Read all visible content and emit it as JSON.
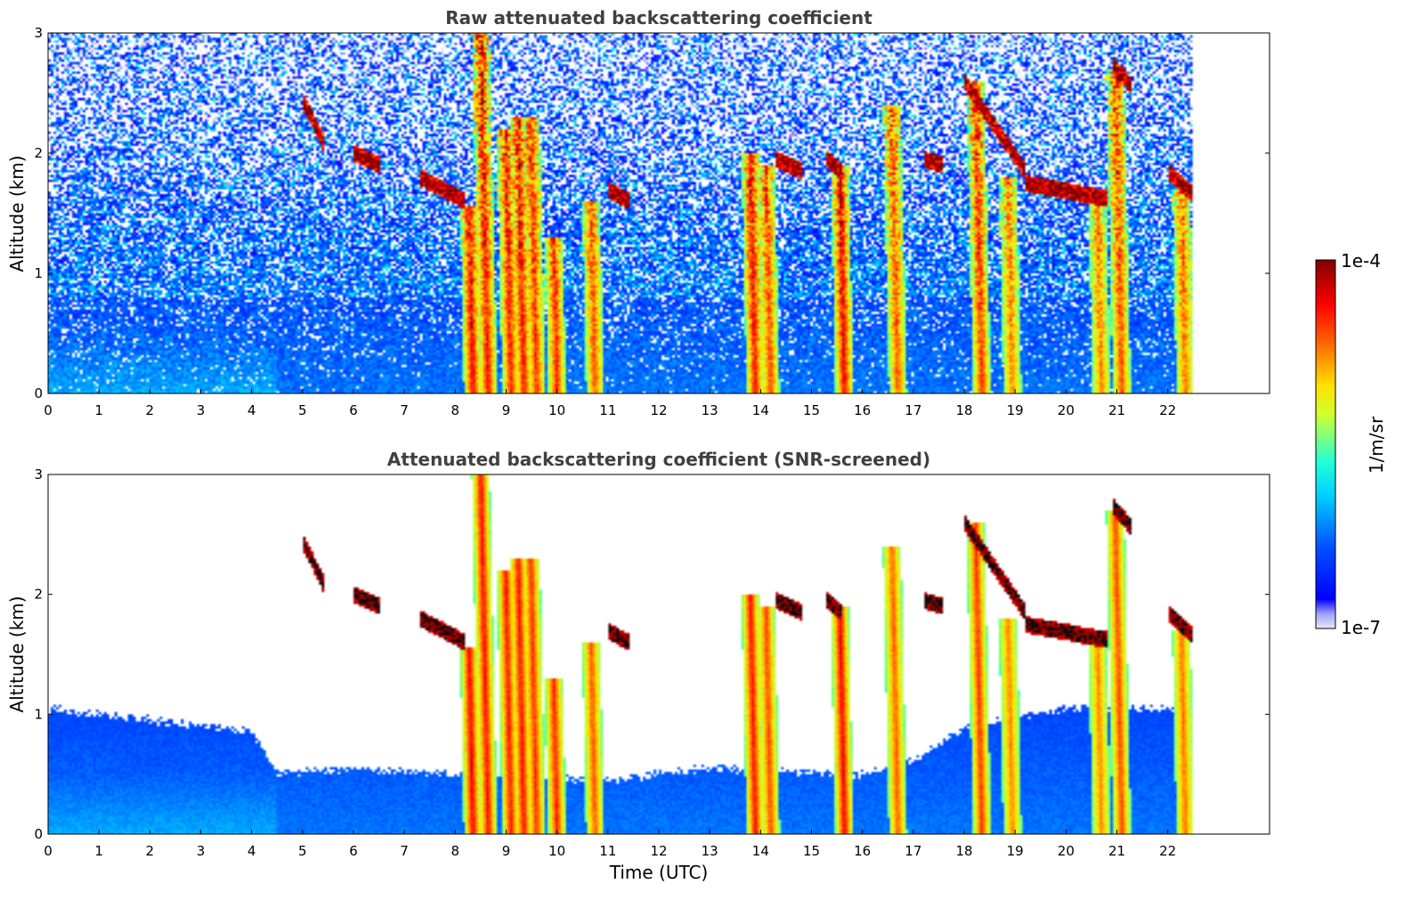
{
  "chart_data": [
    {
      "type": "heatmap",
      "title": "Raw attenuated backscattering coefficient",
      "xlabel": "",
      "ylabel": "Altitude (km)",
      "x_ticks": [
        "0",
        "1",
        "2",
        "3",
        "4",
        "5",
        "6",
        "7",
        "8",
        "9",
        "10",
        "11",
        "12",
        "13",
        "14",
        "15",
        "16",
        "17",
        "18",
        "19",
        "20",
        "21",
        "22"
      ],
      "y_ticks": [
        "0",
        "1",
        "2",
        "3"
      ],
      "xlim": [
        0,
        24
      ],
      "ylim": [
        0,
        3
      ],
      "data_extent_x": [
        0,
        22.5
      ],
      "screened": false,
      "background_color": "#ffffff",
      "colorscale": "jet-like",
      "plumes": [
        {
          "x": 8.35,
          "top": 1.55,
          "intensity": 0.95
        },
        {
          "x": 8.65,
          "top": 3.0,
          "intensity": 0.9
        },
        {
          "x": 9.1,
          "top": 2.2,
          "intensity": 0.88
        },
        {
          "x": 9.35,
          "top": 2.3,
          "intensity": 0.9
        },
        {
          "x": 9.6,
          "top": 2.3,
          "intensity": 0.82
        },
        {
          "x": 10.0,
          "top": 1.3,
          "intensity": 0.85
        },
        {
          "x": 10.75,
          "top": 1.6,
          "intensity": 0.72
        },
        {
          "x": 13.9,
          "top": 2.0,
          "intensity": 0.9
        },
        {
          "x": 14.2,
          "top": 1.9,
          "intensity": 0.75
        },
        {
          "x": 15.65,
          "top": 1.9,
          "intensity": 0.95
        },
        {
          "x": 16.7,
          "top": 2.4,
          "intensity": 0.7
        },
        {
          "x": 18.35,
          "top": 2.6,
          "intensity": 0.8
        },
        {
          "x": 18.95,
          "top": 1.8,
          "intensity": 0.6
        },
        {
          "x": 20.7,
          "top": 1.7,
          "intensity": 0.6
        },
        {
          "x": 21.1,
          "top": 2.7,
          "intensity": 0.75
        },
        {
          "x": 22.35,
          "top": 1.7,
          "intensity": 0.65
        }
      ],
      "cloud_layers": [
        {
          "x0": 5.0,
          "x1": 5.4,
          "y0": 2.45,
          "y1": 2.1
        },
        {
          "x0": 6.0,
          "x1": 6.5,
          "y0": 2.0,
          "y1": 1.9
        },
        {
          "x0": 7.3,
          "x1": 8.2,
          "y0": 1.8,
          "y1": 1.6
        },
        {
          "x0": 11.0,
          "x1": 11.4,
          "y0": 1.7,
          "y1": 1.6
        },
        {
          "x0": 14.3,
          "x1": 14.8,
          "y0": 1.95,
          "y1": 1.85
        },
        {
          "x0": 15.3,
          "x1": 15.6,
          "y0": 1.95,
          "y1": 1.85
        },
        {
          "x0": 17.2,
          "x1": 17.6,
          "y0": 1.95,
          "y1": 1.9
        },
        {
          "x0": 18.0,
          "x1": 19.2,
          "y0": 2.6,
          "y1": 1.85
        },
        {
          "x0": 19.2,
          "x1": 20.8,
          "y0": 1.75,
          "y1": 1.62
        },
        {
          "x0": 20.9,
          "x1": 21.3,
          "y0": 2.75,
          "y1": 2.55
        },
        {
          "x0": 22.0,
          "x1": 22.5,
          "y0": 1.85,
          "y1": 1.65
        }
      ]
    },
    {
      "type": "heatmap",
      "title": "Attenuated backscattering coefficient (SNR-screened)",
      "xlabel": "Time (UTC)",
      "ylabel": "Altitude (km)",
      "x_ticks": [
        "0",
        "1",
        "2",
        "3",
        "4",
        "5",
        "6",
        "7",
        "8",
        "9",
        "10",
        "11",
        "12",
        "13",
        "14",
        "15",
        "16",
        "17",
        "18",
        "19",
        "20",
        "21",
        "22"
      ],
      "y_ticks": [
        "0",
        "1",
        "2",
        "3"
      ],
      "xlim": [
        0,
        24
      ],
      "ylim": [
        0,
        3
      ],
      "data_extent_x": [
        0,
        22.5
      ],
      "screened": true,
      "background_color": "#ffffff",
      "colorscale": "jet-like",
      "screen_top": [
        {
          "x": 0,
          "y": 1.05
        },
        {
          "x": 2,
          "y": 0.95
        },
        {
          "x": 4,
          "y": 0.85
        },
        {
          "x": 4.5,
          "y": 0.5
        },
        {
          "x": 6,
          "y": 0.55
        },
        {
          "x": 8,
          "y": 0.5
        },
        {
          "x": 11,
          "y": 0.45
        },
        {
          "x": 13,
          "y": 0.55
        },
        {
          "x": 16,
          "y": 0.5
        },
        {
          "x": 17,
          "y": 0.6
        },
        {
          "x": 18,
          "y": 0.9
        },
        {
          "x": 20,
          "y": 1.05
        },
        {
          "x": 22.5,
          "y": 1.05
        }
      ]
    }
  ],
  "colorbar": {
    "label": "1/m/sr",
    "max_label": "1e-4",
    "min_label": "1e-7",
    "scale": "log",
    "range": [
      1e-07,
      0.0001
    ]
  },
  "colors": {
    "jet_stops": [
      "#e8e8f8",
      "#0000ff",
      "#00ffff",
      "#ffff00",
      "#ff0000",
      "#800000"
    ]
  }
}
